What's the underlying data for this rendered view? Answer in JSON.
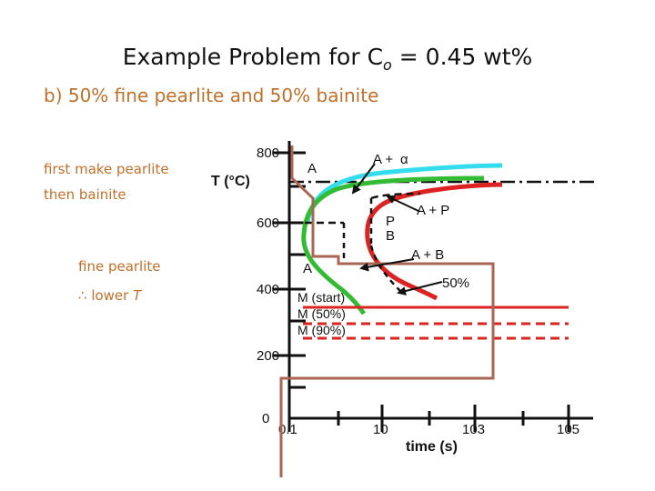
{
  "slide": {
    "title_main": "Example Problem for C",
    "title_sub": "o",
    "title_rest": " = 0.45 wt%",
    "subtitle": "b)  50% fine pearlite and 50% bainite",
    "left_text": {
      "line1": "first make pearlite",
      "line2": "then bainite",
      "line3": "fine pearlite",
      "line4_symbol": "∴",
      "line4_text": " lower ",
      "line4_italic": "T"
    }
  },
  "diagram": {
    "y_axis_label": "T (°C)",
    "x_axis_label": "time (s)",
    "y_ticks": [
      "800",
      "600",
      "400",
      "200",
      "0"
    ],
    "x_ticks": [
      "0.1",
      "10",
      "103",
      "105"
    ],
    "region_labels": {
      "austenite_top": "A",
      "a_alpha_a": "A + ",
      "a_alpha_alpha": "α",
      "a_plus_p": "A + P",
      "p": "P",
      "b": "B",
      "a_plus_b": "A + B",
      "austenite_low": "A",
      "fifty": "50%",
      "m_start": "M (start)",
      "m_50": "M (50%)",
      "m_90": "M (90%)"
    },
    "colors": {
      "cyan": "#33ddee",
      "green": "#33bb33",
      "red": "#dd2222",
      "brown": "#aa6655",
      "text": "#111111",
      "orange_text": "#c0702a"
    }
  }
}
